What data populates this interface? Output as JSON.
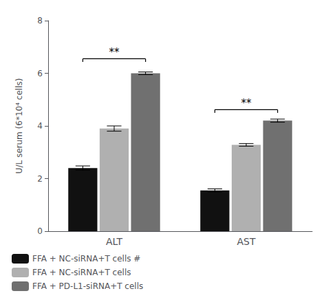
{
  "chart_data": {
    "type": "bar",
    "categories": [
      "ALT",
      "AST"
    ],
    "series": [
      {
        "name": "FFA + NC-siRNA+T cells #",
        "color": "#111111",
        "values": [
          2.4,
          1.55
        ],
        "errors": [
          0.08,
          0.06
        ]
      },
      {
        "name": "FFA + NC-siRNA+T cells",
        "color": "#b0b0b0",
        "values": [
          3.9,
          3.28
        ],
        "errors": [
          0.1,
          0.05
        ]
      },
      {
        "name": "FFA + PD-L1-siRNA+T cells",
        "color": "#707070",
        "values": [
          6.0,
          4.2
        ],
        "errors": [
          0.05,
          0.06
        ]
      }
    ],
    "ylabel": "U/L serum (6*10⁴ cells)",
    "ylim": [
      0,
      8
    ],
    "yticks": [
      0,
      2,
      4,
      6,
      8
    ],
    "grid": false,
    "legend": "bottom left",
    "annotations": [
      {
        "text": "**",
        "category": "ALT",
        "y": 6.55,
        "bracket_drop": 0.12
      },
      {
        "text": "**",
        "category": "AST",
        "y": 4.62,
        "bracket_drop": 0.12
      }
    ]
  }
}
